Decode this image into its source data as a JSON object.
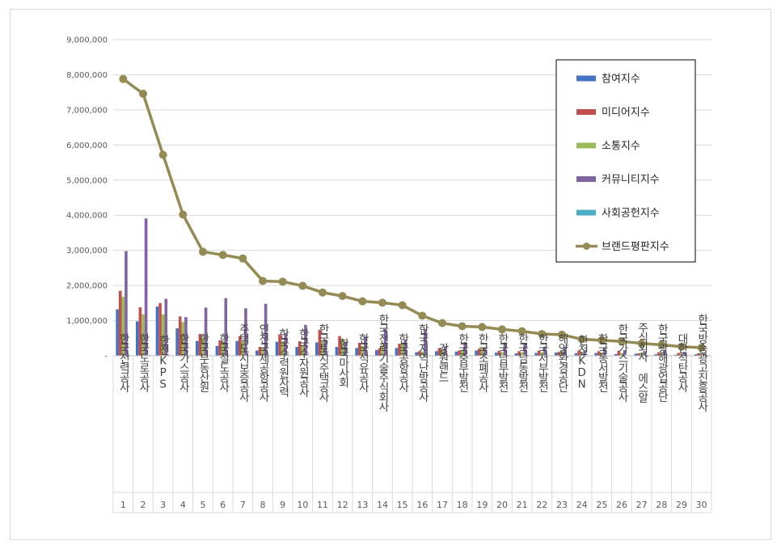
{
  "chart_data": {
    "type": "bar",
    "title": "",
    "xlabel": "",
    "ylabel": "",
    "ylim": [
      0,
      9000000
    ],
    "y_ticks": [
      "-",
      "1,000,000",
      "2,000,000",
      "3,000,000",
      "4,000,000",
      "5,000,000",
      "6,000,000",
      "7,000,000",
      "8,000,000",
      "9,000,000"
    ],
    "grid": true,
    "legend_position": "top-right",
    "categories": [
      "한국전력공사",
      "한국도로공사",
      "한전KPS",
      "한국가스공사",
      "한국부동산원",
      "한국철도공사",
      "주택도시보증공사",
      "인천국제공항공사",
      "한국수력원자력",
      "한국수자원공사",
      "한국토지주택공사",
      "한국마사회",
      "한국석유공사",
      "한국전력기술주식회사",
      "한국공항공사",
      "한국지역난방공사",
      "강원랜드",
      "한국중부발전",
      "한국조폐공사",
      "한국남부발전",
      "한국남동발전",
      "한국서부발전",
      "해양환경공단",
      "한전KDN",
      "한국동서발전",
      "한국가스기술공사",
      "주식회사 에스알",
      "한국광해광업공단",
      "대한석탄공사",
      "한국방송광고진흥공사"
    ],
    "ranks": [
      "1",
      "2",
      "3",
      "4",
      "5",
      "6",
      "7",
      "8",
      "9",
      "10",
      "11",
      "12",
      "13",
      "14",
      "15",
      "16",
      "17",
      "18",
      "19",
      "20",
      "21",
      "22",
      "23",
      "24",
      "25",
      "26",
      "27",
      "28",
      "29",
      "30"
    ],
    "series": [
      {
        "name": "참여지수",
        "kind": "bar",
        "color": "#4472c4",
        "values": [
          1320000,
          980000,
          1400000,
          780000,
          420000,
          280000,
          420000,
          150000,
          400000,
          250000,
          380000,
          250000,
          220000,
          160000,
          220000,
          100000,
          130000,
          120000,
          150000,
          90000,
          70000,
          80000,
          90000,
          70000,
          80000,
          50000,
          60000,
          40000,
          30000,
          40000
        ]
      },
      {
        "name": "미디어지수",
        "kind": "bar",
        "color": "#c0504d",
        "values": [
          1850000,
          1380000,
          1500000,
          1120000,
          620000,
          440000,
          560000,
          250000,
          610000,
          410000,
          740000,
          560000,
          370000,
          210000,
          340000,
          130000,
          220000,
          150000,
          200000,
          140000,
          130000,
          150000,
          110000,
          150000,
          130000,
          140000,
          70000,
          100000,
          80000,
          70000
        ]
      },
      {
        "name": "소통지수",
        "kind": "bar",
        "color": "#9bbb59",
        "values": [
          1680000,
          1180000,
          1180000,
          960000,
          520000,
          420000,
          420000,
          220000,
          420000,
          300000,
          430000,
          470000,
          280000,
          300000,
          370000,
          120000,
          200000,
          170000,
          230000,
          100000,
          100000,
          100000,
          140000,
          110000,
          90000,
          70000,
          90000,
          60000,
          50000,
          60000
        ]
      },
      {
        "name": "커뮤니티지수",
        "kind": "bar",
        "color": "#8064a2",
        "values": [
          2980000,
          3910000,
          1620000,
          1100000,
          1370000,
          1640000,
          1350000,
          1480000,
          640000,
          880000,
          460000,
          400000,
          550000,
          760000,
          460000,
          760000,
          270000,
          390000,
          240000,
          380000,
          360000,
          260000,
          260000,
          160000,
          220000,
          160000,
          130000,
          170000,
          110000,
          60000
        ]
      },
      {
        "name": "사회공헌지수",
        "kind": "bar",
        "color": "#4bacc6",
        "values": [
          20000,
          20000,
          15000,
          15000,
          10000,
          10000,
          15000,
          10000,
          15000,
          10000,
          15000,
          10000,
          10000,
          10000,
          10000,
          10000,
          10000,
          10000,
          10000,
          10000,
          10000,
          10000,
          10000,
          10000,
          10000,
          10000,
          5000,
          10000,
          5000,
          5000
        ]
      },
      {
        "name": "브랜드평판지수",
        "kind": "line",
        "color": "#948a54",
        "values": [
          7880000,
          7460000,
          5720000,
          4020000,
          2960000,
          2870000,
          2770000,
          2130000,
          2110000,
          1990000,
          1800000,
          1700000,
          1550000,
          1510000,
          1440000,
          1140000,
          930000,
          840000,
          820000,
          750000,
          700000,
          620000,
          600000,
          470000,
          440000,
          410000,
          350000,
          310000,
          260000,
          230000
        ]
      }
    ]
  }
}
